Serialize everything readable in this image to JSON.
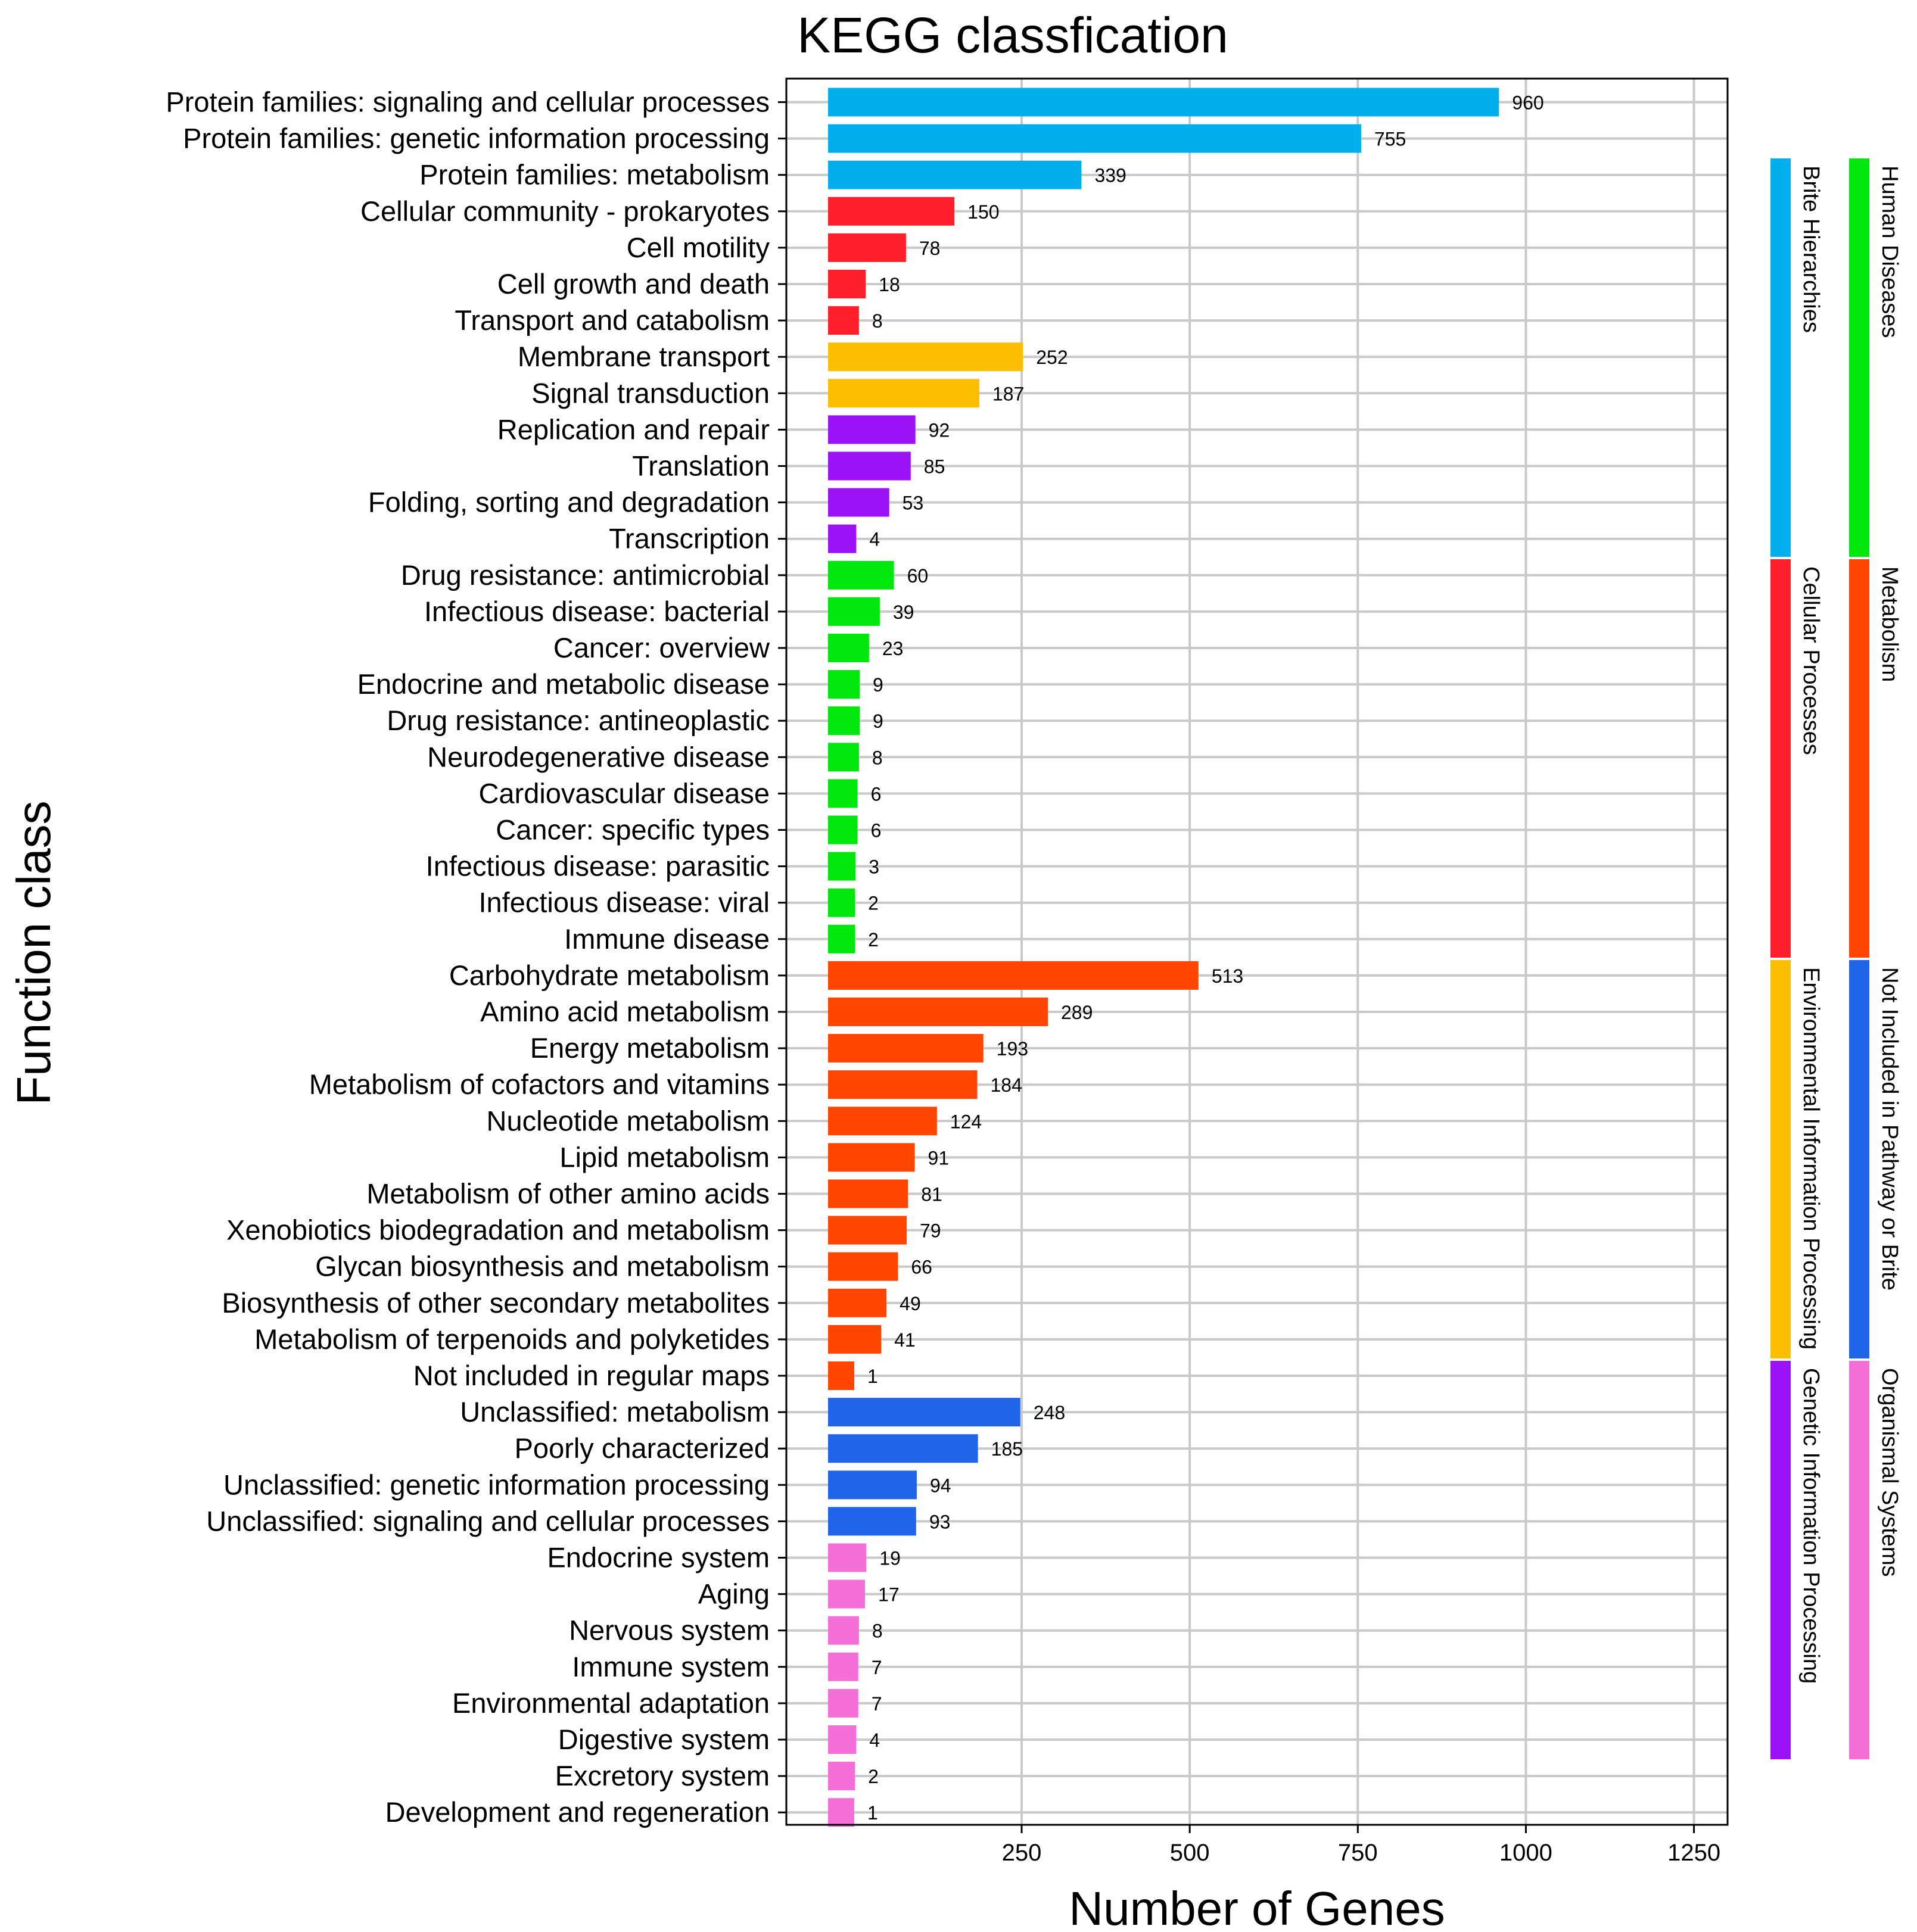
{
  "chart_data": {
    "type": "bar",
    "orientation": "horizontal",
    "title": "KEGG classfication",
    "xlabel": "Number of Genes",
    "ylabel": "Function class",
    "x_ticks": [
      250,
      500,
      750,
      1000,
      1250
    ],
    "xlim": [
      -100,
      1300
    ],
    "grid": true,
    "legend_placement": "right",
    "groups": [
      {
        "name": "Brite Hierarchies",
        "color": "#00AFEC"
      },
      {
        "name": "Cellular Processes",
        "color": "#FF1F2A"
      },
      {
        "name": "Environmental Information Processing",
        "color": "#FDBD00"
      },
      {
        "name": "Genetic Information Processing",
        "color": "#9B12F6"
      },
      {
        "name": "Human Diseases",
        "color": "#00E80B"
      },
      {
        "name": "Metabolism",
        "color": "#FF4500"
      },
      {
        "name": "Not Included in Pathway or Brite",
        "color": "#1F64E9"
      },
      {
        "name": "Organismal Systems",
        "color": "#F56FD9"
      }
    ],
    "legend_columns": [
      [
        "Brite Hierarchies",
        "Cellular Processes",
        "Environmental Information Processing",
        "Genetic Information Processing"
      ],
      [
        "Human Diseases",
        "Metabolism",
        "Not Included in Pathway or Brite",
        "Organismal Systems"
      ]
    ],
    "bars": [
      {
        "label": "Protein families: signaling and cellular processes",
        "value": 960,
        "group": "Brite Hierarchies"
      },
      {
        "label": "Protein families: genetic information processing",
        "value": 755,
        "group": "Brite Hierarchies"
      },
      {
        "label": "Protein families: metabolism",
        "value": 339,
        "group": "Brite Hierarchies"
      },
      {
        "label": "Cellular community - prokaryotes",
        "value": 150,
        "group": "Cellular Processes"
      },
      {
        "label": "Cell motility",
        "value": 78,
        "group": "Cellular Processes"
      },
      {
        "label": "Cell growth and death",
        "value": 18,
        "group": "Cellular Processes"
      },
      {
        "label": "Transport and catabolism",
        "value": 8,
        "group": "Cellular Processes"
      },
      {
        "label": "Membrane transport",
        "value": 252,
        "group": "Environmental Information Processing"
      },
      {
        "label": "Signal transduction",
        "value": 187,
        "group": "Environmental Information Processing"
      },
      {
        "label": "Replication and repair",
        "value": 92,
        "group": "Genetic Information Processing"
      },
      {
        "label": "Translation",
        "value": 85,
        "group": "Genetic Information Processing"
      },
      {
        "label": "Folding, sorting and degradation",
        "value": 53,
        "group": "Genetic Information Processing"
      },
      {
        "label": "Transcription",
        "value": 4,
        "group": "Genetic Information Processing"
      },
      {
        "label": "Drug resistance: antimicrobial",
        "value": 60,
        "group": "Human Diseases"
      },
      {
        "label": "Infectious disease: bacterial",
        "value": 39,
        "group": "Human Diseases"
      },
      {
        "label": "Cancer: overview",
        "value": 23,
        "group": "Human Diseases"
      },
      {
        "label": "Endocrine and metabolic disease",
        "value": 9,
        "group": "Human Diseases"
      },
      {
        "label": "Drug resistance: antineoplastic",
        "value": 9,
        "group": "Human Diseases"
      },
      {
        "label": "Neurodegenerative disease",
        "value": 8,
        "group": "Human Diseases"
      },
      {
        "label": "Cardiovascular disease",
        "value": 6,
        "group": "Human Diseases"
      },
      {
        "label": "Cancer: specific types",
        "value": 6,
        "group": "Human Diseases"
      },
      {
        "label": "Infectious disease: parasitic",
        "value": 3,
        "group": "Human Diseases"
      },
      {
        "label": "Infectious disease: viral",
        "value": 2,
        "group": "Human Diseases"
      },
      {
        "label": "Immune disease",
        "value": 2,
        "group": "Human Diseases"
      },
      {
        "label": "Carbohydrate metabolism",
        "value": 513,
        "group": "Metabolism"
      },
      {
        "label": "Amino acid metabolism",
        "value": 289,
        "group": "Metabolism"
      },
      {
        "label": "Energy metabolism",
        "value": 193,
        "group": "Metabolism"
      },
      {
        "label": "Metabolism of cofactors and vitamins",
        "value": 184,
        "group": "Metabolism"
      },
      {
        "label": "Nucleotide metabolism",
        "value": 124,
        "group": "Metabolism"
      },
      {
        "label": "Lipid metabolism",
        "value": 91,
        "group": "Metabolism"
      },
      {
        "label": "Metabolism of other amino acids",
        "value": 81,
        "group": "Metabolism"
      },
      {
        "label": "Xenobiotics biodegradation and metabolism",
        "value": 79,
        "group": "Metabolism"
      },
      {
        "label": "Glycan biosynthesis and metabolism",
        "value": 66,
        "group": "Metabolism"
      },
      {
        "label": "Biosynthesis of other secondary metabolites",
        "value": 49,
        "group": "Metabolism"
      },
      {
        "label": "Metabolism of terpenoids and polyketides",
        "value": 41,
        "group": "Metabolism"
      },
      {
        "label": "Not included in regular maps",
        "value": 1,
        "group": "Metabolism"
      },
      {
        "label": "Unclassified: metabolism",
        "value": 248,
        "group": "Not Included in Pathway or Brite"
      },
      {
        "label": "Poorly characterized",
        "value": 185,
        "group": "Not Included in Pathway or Brite"
      },
      {
        "label": "Unclassified: genetic information processing",
        "value": 94,
        "group": "Not Included in Pathway or Brite"
      },
      {
        "label": "Unclassified: signaling and cellular processes",
        "value": 93,
        "group": "Not Included in Pathway or Brite"
      },
      {
        "label": "Endocrine system",
        "value": 19,
        "group": "Organismal Systems"
      },
      {
        "label": "Aging",
        "value": 17,
        "group": "Organismal Systems"
      },
      {
        "label": "Nervous system",
        "value": 8,
        "group": "Organismal Systems"
      },
      {
        "label": "Immune system",
        "value": 7,
        "group": "Organismal Systems"
      },
      {
        "label": "Environmental adaptation",
        "value": 7,
        "group": "Organismal Systems"
      },
      {
        "label": "Digestive system",
        "value": 4,
        "group": "Organismal Systems"
      },
      {
        "label": "Excretory system",
        "value": 2,
        "group": "Organismal Systems"
      },
      {
        "label": "Development and regeneration",
        "value": 1,
        "group": "Organismal Systems"
      }
    ]
  }
}
